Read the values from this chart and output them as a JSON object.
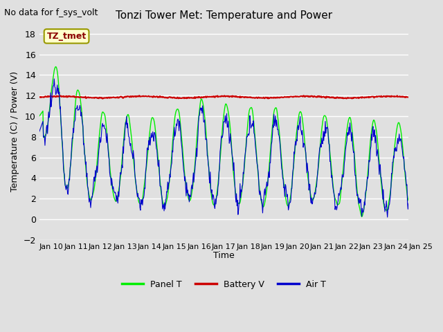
{
  "title": "Tonzi Tower Met: Temperature and Power",
  "ylabel": "Temperature (C) / Power (V)",
  "xlabel": "Time",
  "no_data_text": "No data for f_sys_volt",
  "annotation_text": "TZ_tmet",
  "ylim": [
    -2,
    19
  ],
  "yticks": [
    -2,
    0,
    2,
    4,
    6,
    8,
    10,
    12,
    14,
    16,
    18
  ],
  "xtick_labels": [
    "Jan 10",
    "Jan 11",
    "Jan 12",
    "Jan 13",
    "Jan 14",
    "Jan 15",
    "Jan 16",
    "Jan 17",
    "Jan 18",
    "Jan 19",
    "Jan 20",
    "Jan 21",
    "Jan 22",
    "Jan 23",
    "Jan 24",
    "Jan 25"
  ],
  "background_color": "#e0e0e0",
  "plot_bg_color": "#e0e0e0",
  "grid_color": "#ffffff",
  "battery_v_value": 11.85,
  "panel_color": "#00ee00",
  "battery_color": "#cc0000",
  "air_color": "#0000cc",
  "legend_panel": "Panel T",
  "legend_battery": "Battery V",
  "legend_air": "Air T",
  "figwidth": 6.4,
  "figheight": 4.8,
  "dpi": 100
}
